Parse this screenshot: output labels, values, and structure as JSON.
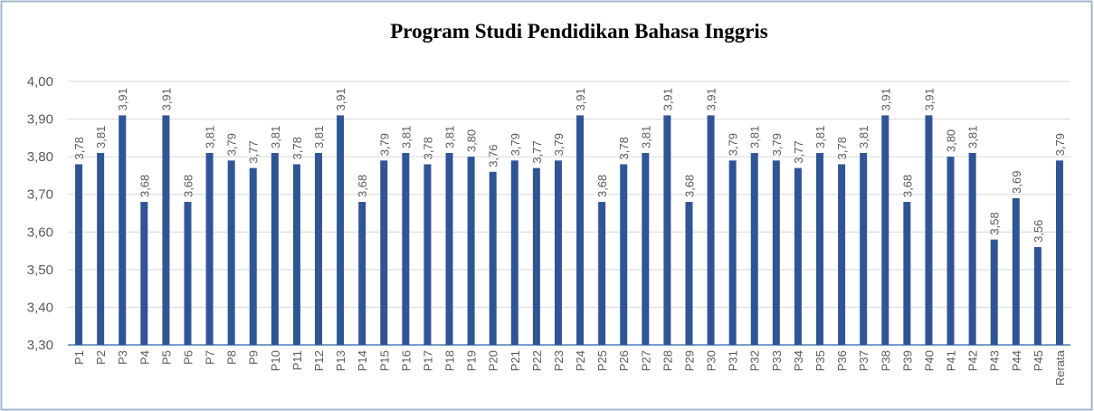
{
  "chart_data": {
    "type": "bar",
    "title": "Program Studi  Pendidikan Bahasa Inggris",
    "categories": [
      "P1",
      "P2",
      "P3",
      "P4",
      "P5",
      "P6",
      "P7",
      "P8",
      "P9",
      "P10",
      "P11",
      "P12",
      "P13",
      "P14",
      "P15",
      "P16",
      "P17",
      "P18",
      "P19",
      "P20",
      "P21",
      "P22",
      "P23",
      "P24",
      "P25",
      "P26",
      "P27",
      "P28",
      "P29",
      "P30",
      "P31",
      "P32",
      "P33",
      "P34",
      "P35",
      "P36",
      "P37",
      "P38",
      "P39",
      "P40",
      "P41",
      "P42",
      "P43",
      "P44",
      "P45",
      "Rerata"
    ],
    "values": [
      3.78,
      3.81,
      3.91,
      3.68,
      3.91,
      3.68,
      3.81,
      3.79,
      3.77,
      3.81,
      3.78,
      3.81,
      3.91,
      3.68,
      3.79,
      3.81,
      3.78,
      3.81,
      3.8,
      3.76,
      3.79,
      3.77,
      3.79,
      3.91,
      3.68,
      3.78,
      3.81,
      3.91,
      3.68,
      3.91,
      3.79,
      3.81,
      3.79,
      3.77,
      3.81,
      3.78,
      3.81,
      3.91,
      3.68,
      3.91,
      3.8,
      3.81,
      3.58,
      3.69,
      3.56,
      3.79
    ],
    "value_labels": [
      "3,78",
      "3,81",
      "3,91",
      "3,68",
      "3,91",
      "3,68",
      "3,81",
      "3,79",
      "3,77",
      "3,81",
      "3,78",
      "3,81",
      "3,91",
      "3,68",
      "3,79",
      "3,81",
      "3,78",
      "3,81",
      "3,80",
      "3,76",
      "3,79",
      "3,77",
      "3,79",
      "3,91",
      "3,68",
      "3,78",
      "3,81",
      "3,91",
      "3,68",
      "3,91",
      "3,79",
      "3,81",
      "3,79",
      "3,77",
      "3,81",
      "3,78",
      "3,81",
      "3,91",
      "3,68",
      "3,91",
      "3,80",
      "3,81",
      "3,58",
      "3,69",
      "3,56",
      "3,79"
    ],
    "color": "#2f5597",
    "ylim": [
      3.3,
      4.0
    ],
    "yticks": [
      {
        "value": 3.3,
        "label": "3,30"
      },
      {
        "value": 3.4,
        "label": "3,40"
      },
      {
        "value": 3.5,
        "label": "3,50"
      },
      {
        "value": 3.6,
        "label": "3,60"
      },
      {
        "value": 3.7,
        "label": "3,70"
      },
      {
        "value": 3.8,
        "label": "3,80"
      },
      {
        "value": 3.9,
        "label": "3,90"
      },
      {
        "value": 4.0,
        "label": "4,00"
      }
    ],
    "grid": true
  }
}
